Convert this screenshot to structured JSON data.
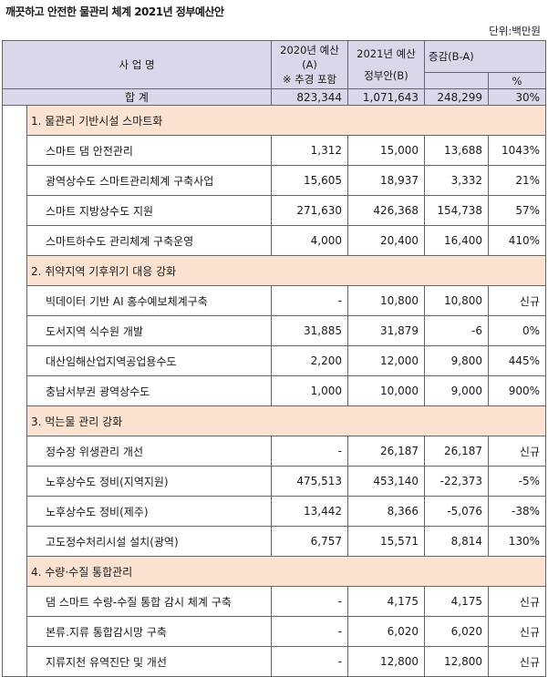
{
  "title": "깨끗하고 안전한 물관리 체계 2021년 정부예산안",
  "unit": "단위:백만원",
  "header": {
    "name": "사 업 명",
    "col2020_l1": "2020년 예산",
    "col2020_l2": "(A)",
    "col2020_l3": "※ 추경 포함",
    "col2021_l1": "2021년 예산",
    "col2021_l2": "정부안(B)",
    "diff": "증감(B-A)",
    "pct": "%"
  },
  "total": {
    "label": "합 계",
    "v2020": "823,344",
    "v2021": "1,071,643",
    "diff": "248,299",
    "pct": "30%"
  },
  "sections": [
    {
      "title": "1. 물관리 기반시설 스마트화",
      "rows": [
        {
          "name": "스마트 댐 안전관리",
          "v2020": "1,312",
          "v2021": "15,000",
          "diff": "13,688",
          "pct": "1043%"
        },
        {
          "name": "광역상수도 스마트관리체계 구축사업",
          "v2020": "15,605",
          "v2021": "18,937",
          "diff": "3,332",
          "pct": "21%"
        },
        {
          "name": "스마트 지방상수도 지원",
          "v2020": "271,630",
          "v2021": "426,368",
          "diff": "154,738",
          "pct": "57%"
        },
        {
          "name": "스마트하수도 관리체계 구축운영",
          "v2020": "4,000",
          "v2021": "20,400",
          "diff": "16,400",
          "pct": "410%"
        }
      ]
    },
    {
      "title": "2. 취약지역 기후위기 대응 강화",
      "rows": [
        {
          "name": "빅데이터 기반 AI 홍수예보체계구축",
          "v2020": "-",
          "v2021": "10,800",
          "diff": "10,800",
          "pct": "신규"
        },
        {
          "name": "도서지역 식수원 개발",
          "v2020": "31,885",
          "v2021": "31,879",
          "diff": "-6",
          "pct": "0%"
        },
        {
          "name": "대산임해산업지역공업용수도",
          "v2020": "2,200",
          "v2021": "12,000",
          "diff": "9,800",
          "pct": "445%"
        },
        {
          "name": "충남서부권 광역상수도",
          "v2020": "1,000",
          "v2021": "10,000",
          "diff": "9,000",
          "pct": "900%"
        }
      ]
    },
    {
      "title": "3. 먹는물 관리 강화",
      "rows": [
        {
          "name": "정수장 위생관리 개선",
          "v2020": "-",
          "v2021": "26,187",
          "diff": "26,187",
          "pct": "신규"
        },
        {
          "name": "노후상수도 정비(지역지원)",
          "v2020": "475,513",
          "v2021": "453,140",
          "diff": "-22,373",
          "pct": "-5%"
        },
        {
          "name": "노후상수도 정비(제주)",
          "v2020": "13,442",
          "v2021": "8,366",
          "diff": "-5,076",
          "pct": "-38%"
        },
        {
          "name": "고도정수처리시설 설치(광역)",
          "v2020": "6,757",
          "v2021": "15,571",
          "diff": "8,814",
          "pct": "130%"
        }
      ]
    },
    {
      "title": "4. 수량·수질 통합관리",
      "rows": [
        {
          "name": "댐 스마트 수량-수질 통합 감시 체계 구축",
          "v2020": "-",
          "v2021": "4,175",
          "diff": "4,175",
          "pct": "신규"
        },
        {
          "name": "본류.지류 통합감시망 구축",
          "v2020": "-",
          "v2021": "6,020",
          "diff": "6,020",
          "pct": "신규"
        },
        {
          "name": "지류지천 유역진단 및 개선",
          "v2020": "-",
          "v2021": "12,800",
          "diff": "12,800",
          "pct": "신규"
        }
      ]
    }
  ]
}
